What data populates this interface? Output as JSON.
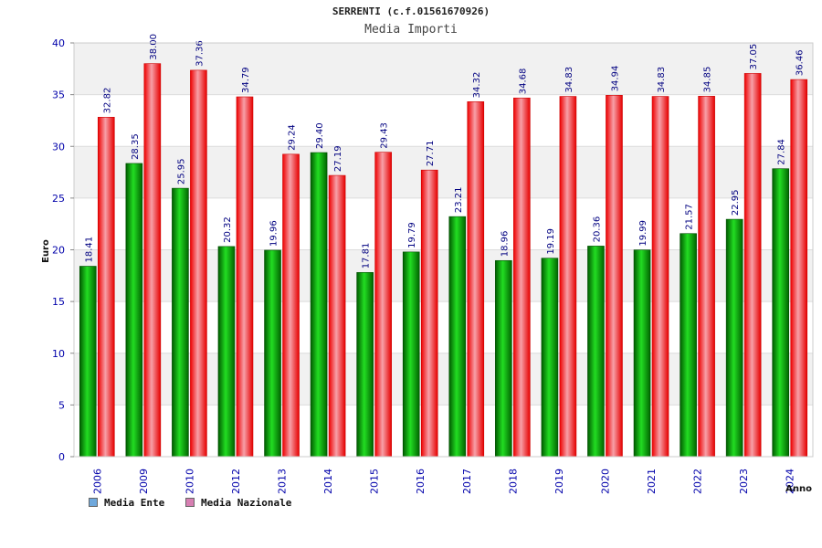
{
  "header": {
    "title": "SERRENTI (c.f.01561670926)"
  },
  "chart_data": {
    "type": "bar",
    "title": "SERRENTI (c.f.01561670926)",
    "subtitle": "Media Importi",
    "xlabel": "Anno",
    "ylabel": "Euro",
    "ylim": [
      0,
      40
    ],
    "yticks": [
      0,
      5,
      10,
      15,
      20,
      25,
      30,
      35,
      40
    ],
    "grid": true,
    "legend_position": "bottom-left",
    "categories": [
      "2006",
      "2009",
      "2010",
      "2012",
      "2013",
      "2014",
      "2015",
      "2016",
      "2017",
      "2018",
      "2019",
      "2020",
      "2021",
      "2022",
      "2023",
      "2024"
    ],
    "series": [
      {
        "name": "Media Ente",
        "legend_color": "#6fa8dc",
        "bar_color": "#00b000",
        "values": [
          18.41,
          28.35,
          25.95,
          20.32,
          19.96,
          29.4,
          17.81,
          19.79,
          23.21,
          18.96,
          19.19,
          20.36,
          19.99,
          21.57,
          22.95,
          27.84
        ],
        "labels": [
          "18.41",
          "28.35",
          "25.95",
          "20.32",
          "19.96",
          "29.40",
          "17.81",
          "19.79",
          "23.21",
          "18.96",
          "19.19",
          "20.36",
          "19.99",
          "21.57",
          "22.95",
          "27.84"
        ]
      },
      {
        "name": "Media Nazionale",
        "legend_color": "#d77fb2",
        "bar_color": "#ee1122",
        "values": [
          32.82,
          38.0,
          37.36,
          34.79,
          29.24,
          27.19,
          29.43,
          27.71,
          34.32,
          34.68,
          34.83,
          34.94,
          34.83,
          34.85,
          37.05,
          36.46
        ],
        "labels": [
          "32.82",
          "38.00",
          "37.36",
          "34.79",
          "29.24",
          "27.19",
          "29.43",
          "27.71",
          "34.32",
          "34.68",
          "34.83",
          "34.94",
          "34.83",
          "34.85",
          "37.05",
          "36.46"
        ]
      }
    ]
  }
}
